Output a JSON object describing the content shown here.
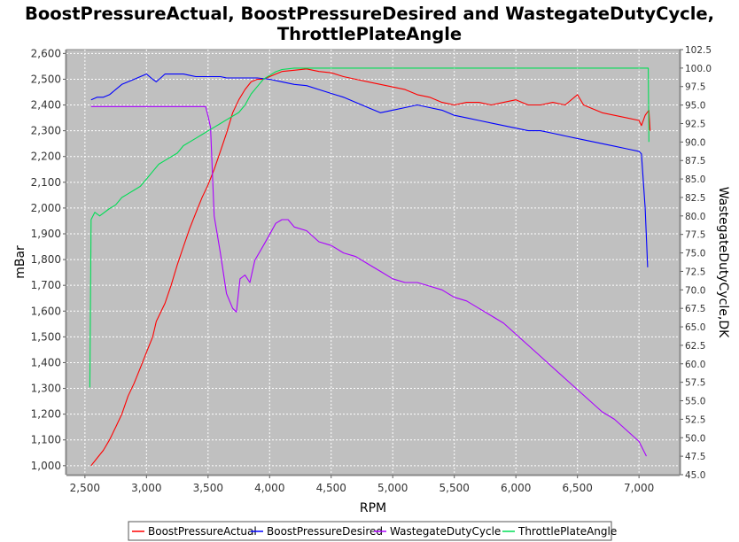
{
  "chart_data": {
    "type": "line",
    "title": "BoostPressureActual, BoostPressureDesired and WastegateDutyCycle,",
    "title_line2": "ThrottlePlateAngle",
    "xlabel": "RPM",
    "ylabel": "mBar",
    "ylabel_right": "WastegateDutyCycle,DK",
    "xlim": [
      2350,
      7330
    ],
    "ylim": [
      965,
      2615
    ],
    "ylim_right": [
      45.0,
      102.5
    ],
    "x_ticks": [
      2500,
      3000,
      3500,
      4000,
      4500,
      5000,
      5500,
      6000,
      6500,
      7000
    ],
    "x_tick_labels": [
      "2,500",
      "3,000",
      "3,500",
      "4,000",
      "4,500",
      "5,000",
      "5,500",
      "6,000",
      "6,500",
      "7,000"
    ],
    "y_ticks": [
      1000,
      1100,
      1200,
      1300,
      1400,
      1500,
      1600,
      1700,
      1800,
      1900,
      2000,
      2100,
      2200,
      2300,
      2400,
      2500,
      2600
    ],
    "y_tick_labels": [
      "1,000",
      "1,100",
      "1,200",
      "1,300",
      "1,400",
      "1,500",
      "1,600",
      "1,700",
      "1,800",
      "1,900",
      "2,000",
      "2,100",
      "2,200",
      "2,300",
      "2,400",
      "2,500",
      "2,600"
    ],
    "y_right_ticks": [
      45.0,
      47.5,
      50.0,
      52.5,
      55.0,
      57.5,
      60.0,
      62.5,
      65.0,
      67.5,
      70.0,
      72.5,
      75.0,
      77.5,
      80.0,
      82.5,
      85.0,
      87.5,
      90.0,
      92.5,
      95.0,
      97.5,
      100.0,
      102.5
    ],
    "y_right_tick_labels": [
      "45.0",
      "47.5",
      "50.0",
      "52.5",
      "55.0",
      "57.5",
      "60.0",
      "62.5",
      "65.0",
      "67.5",
      "70.0",
      "72.5",
      "75.0",
      "77.5",
      "80.0",
      "82.5",
      "85.0",
      "87.5",
      "90.0",
      "92.5",
      "95.0",
      "97.5",
      "100.0",
      "102.5"
    ],
    "grid": true,
    "legend_placement": "bottom",
    "plot_background": "#c0c0c0",
    "series": [
      {
        "name": "BoostPressureActual",
        "color": "#ff0000",
        "axis": "left",
        "points": [
          [
            2550,
            1000
          ],
          [
            2600,
            1030
          ],
          [
            2650,
            1060
          ],
          [
            2700,
            1100
          ],
          [
            2750,
            1150
          ],
          [
            2800,
            1200
          ],
          [
            2850,
            1270
          ],
          [
            2900,
            1320
          ],
          [
            2950,
            1380
          ],
          [
            3000,
            1440
          ],
          [
            3050,
            1500
          ],
          [
            3080,
            1560
          ],
          [
            3150,
            1630
          ],
          [
            3200,
            1700
          ],
          [
            3250,
            1780
          ],
          [
            3300,
            1850
          ],
          [
            3350,
            1920
          ],
          [
            3400,
            1980
          ],
          [
            3450,
            2040
          ],
          [
            3500,
            2090
          ],
          [
            3550,
            2150
          ],
          [
            3600,
            2220
          ],
          [
            3650,
            2290
          ],
          [
            3700,
            2370
          ],
          [
            3750,
            2420
          ],
          [
            3800,
            2460
          ],
          [
            3850,
            2490
          ],
          [
            3900,
            2500
          ],
          [
            3950,
            2500
          ],
          [
            4000,
            2510
          ],
          [
            4050,
            2520
          ],
          [
            4100,
            2530
          ],
          [
            4200,
            2535
          ],
          [
            4300,
            2540
          ],
          [
            4400,
            2530
          ],
          [
            4500,
            2525
          ],
          [
            4600,
            2510
          ],
          [
            4700,
            2500
          ],
          [
            4800,
            2490
          ],
          [
            4900,
            2480
          ],
          [
            5000,
            2470
          ],
          [
            5100,
            2460
          ],
          [
            5200,
            2440
          ],
          [
            5300,
            2430
          ],
          [
            5400,
            2410
          ],
          [
            5500,
            2400
          ],
          [
            5600,
            2410
          ],
          [
            5700,
            2410
          ],
          [
            5800,
            2400
          ],
          [
            5900,
            2410
          ],
          [
            6000,
            2420
          ],
          [
            6100,
            2400
          ],
          [
            6200,
            2400
          ],
          [
            6300,
            2410
          ],
          [
            6400,
            2400
          ],
          [
            6500,
            2440
          ],
          [
            6550,
            2400
          ],
          [
            6600,
            2390
          ],
          [
            6700,
            2370
          ],
          [
            6800,
            2360
          ],
          [
            6900,
            2350
          ],
          [
            7000,
            2340
          ],
          [
            7020,
            2320
          ],
          [
            7050,
            2360
          ],
          [
            7080,
            2380
          ],
          [
            7090,
            2300
          ]
        ]
      },
      {
        "name": "BoostPressureDesired",
        "color": "#0000ff",
        "axis": "left",
        "points": [
          [
            2550,
            2420
          ],
          [
            2600,
            2430
          ],
          [
            2650,
            2430
          ],
          [
            2700,
            2440
          ],
          [
            2750,
            2460
          ],
          [
            2800,
            2480
          ],
          [
            2850,
            2490
          ],
          [
            2900,
            2500
          ],
          [
            2950,
            2510
          ],
          [
            3000,
            2520
          ],
          [
            3050,
            2500
          ],
          [
            3080,
            2490
          ],
          [
            3150,
            2520
          ],
          [
            3200,
            2520
          ],
          [
            3250,
            2520
          ],
          [
            3300,
            2520
          ],
          [
            3350,
            2515
          ],
          [
            3400,
            2510
          ],
          [
            3450,
            2510
          ],
          [
            3500,
            2510
          ],
          [
            3550,
            2510
          ],
          [
            3600,
            2510
          ],
          [
            3650,
            2505
          ],
          [
            3700,
            2505
          ],
          [
            3750,
            2505
          ],
          [
            3800,
            2505
          ],
          [
            3900,
            2505
          ],
          [
            4000,
            2500
          ],
          [
            4100,
            2490
          ],
          [
            4200,
            2480
          ],
          [
            4300,
            2475
          ],
          [
            4400,
            2460
          ],
          [
            4500,
            2445
          ],
          [
            4600,
            2430
          ],
          [
            4700,
            2410
          ],
          [
            4800,
            2390
          ],
          [
            4900,
            2370
          ],
          [
            5000,
            2380
          ],
          [
            5100,
            2390
          ],
          [
            5200,
            2400
          ],
          [
            5300,
            2390
          ],
          [
            5400,
            2380
          ],
          [
            5500,
            2360
          ],
          [
            5600,
            2350
          ],
          [
            5700,
            2340
          ],
          [
            5800,
            2330
          ],
          [
            5900,
            2320
          ],
          [
            6000,
            2310
          ],
          [
            6100,
            2300
          ],
          [
            6200,
            2300
          ],
          [
            6300,
            2290
          ],
          [
            6400,
            2280
          ],
          [
            6500,
            2270
          ],
          [
            6600,
            2260
          ],
          [
            6700,
            2250
          ],
          [
            6800,
            2240
          ],
          [
            6900,
            2230
          ],
          [
            7000,
            2220
          ],
          [
            7020,
            2210
          ],
          [
            7050,
            2000
          ],
          [
            7070,
            1770
          ]
        ]
      },
      {
        "name": "WastegateDutyCycle",
        "color": "#aa00ff",
        "axis": "right",
        "points": [
          [
            2550,
            94.8
          ],
          [
            3000,
            94.8
          ],
          [
            3450,
            94.8
          ],
          [
            3480,
            94.8
          ],
          [
            3500,
            93.5
          ],
          [
            3520,
            92.0
          ],
          [
            3550,
            80.0
          ],
          [
            3600,
            75.0
          ],
          [
            3650,
            69.5
          ],
          [
            3700,
            67.5
          ],
          [
            3730,
            67.0
          ],
          [
            3760,
            71.5
          ],
          [
            3800,
            72.0
          ],
          [
            3840,
            71.0
          ],
          [
            3880,
            74.0
          ],
          [
            3950,
            76.0
          ],
          [
            4000,
            77.5
          ],
          [
            4050,
            79.0
          ],
          [
            4100,
            79.5
          ],
          [
            4150,
            79.5
          ],
          [
            4200,
            78.5
          ],
          [
            4300,
            78.0
          ],
          [
            4400,
            76.5
          ],
          [
            4500,
            76.0
          ],
          [
            4600,
            75.0
          ],
          [
            4700,
            74.5
          ],
          [
            4800,
            73.5
          ],
          [
            4900,
            72.5
          ],
          [
            5000,
            71.5
          ],
          [
            5100,
            71.0
          ],
          [
            5200,
            71.0
          ],
          [
            5300,
            70.5
          ],
          [
            5400,
            70.0
          ],
          [
            5500,
            69.0
          ],
          [
            5600,
            68.5
          ],
          [
            5700,
            67.5
          ],
          [
            5800,
            66.5
          ],
          [
            5900,
            65.5
          ],
          [
            6000,
            64.0
          ],
          [
            6100,
            62.5
          ],
          [
            6200,
            61.0
          ],
          [
            6300,
            59.5
          ],
          [
            6400,
            58.0
          ],
          [
            6500,
            56.5
          ],
          [
            6600,
            55.0
          ],
          [
            6700,
            53.5
          ],
          [
            6800,
            52.5
          ],
          [
            6900,
            51.0
          ],
          [
            7000,
            49.5
          ],
          [
            7030,
            48.5
          ],
          [
            7060,
            47.5
          ]
        ]
      },
      {
        "name": "ThrottlePlateAngle",
        "color": "#00dd55",
        "axis": "right",
        "points": [
          [
            2540,
            56.8
          ],
          [
            2550,
            79.5
          ],
          [
            2580,
            80.5
          ],
          [
            2620,
            80.0
          ],
          [
            2700,
            81.0
          ],
          [
            2750,
            81.5
          ],
          [
            2800,
            82.5
          ],
          [
            2850,
            83.0
          ],
          [
            2900,
            83.5
          ],
          [
            2950,
            84.0
          ],
          [
            3000,
            85.0
          ],
          [
            3050,
            86.0
          ],
          [
            3100,
            87.0
          ],
          [
            3150,
            87.5
          ],
          [
            3200,
            88.0
          ],
          [
            3250,
            88.5
          ],
          [
            3300,
            89.5
          ],
          [
            3350,
            90.0
          ],
          [
            3400,
            90.5
          ],
          [
            3450,
            91.0
          ],
          [
            3500,
            91.5
          ],
          [
            3550,
            92.0
          ],
          [
            3600,
            92.5
          ],
          [
            3650,
            93.0
          ],
          [
            3700,
            93.5
          ],
          [
            3750,
            94.0
          ],
          [
            3800,
            95.0
          ],
          [
            3850,
            96.5
          ],
          [
            3900,
            97.5
          ],
          [
            3950,
            98.5
          ],
          [
            4000,
            99.0
          ],
          [
            4050,
            99.5
          ],
          [
            4100,
            99.8
          ],
          [
            4200,
            100.0
          ],
          [
            4500,
            100.0
          ],
          [
            5000,
            100.0
          ],
          [
            6000,
            100.0
          ],
          [
            7000,
            100.0
          ],
          [
            7075,
            100.0
          ],
          [
            7080,
            90.0
          ]
        ]
      }
    ]
  }
}
